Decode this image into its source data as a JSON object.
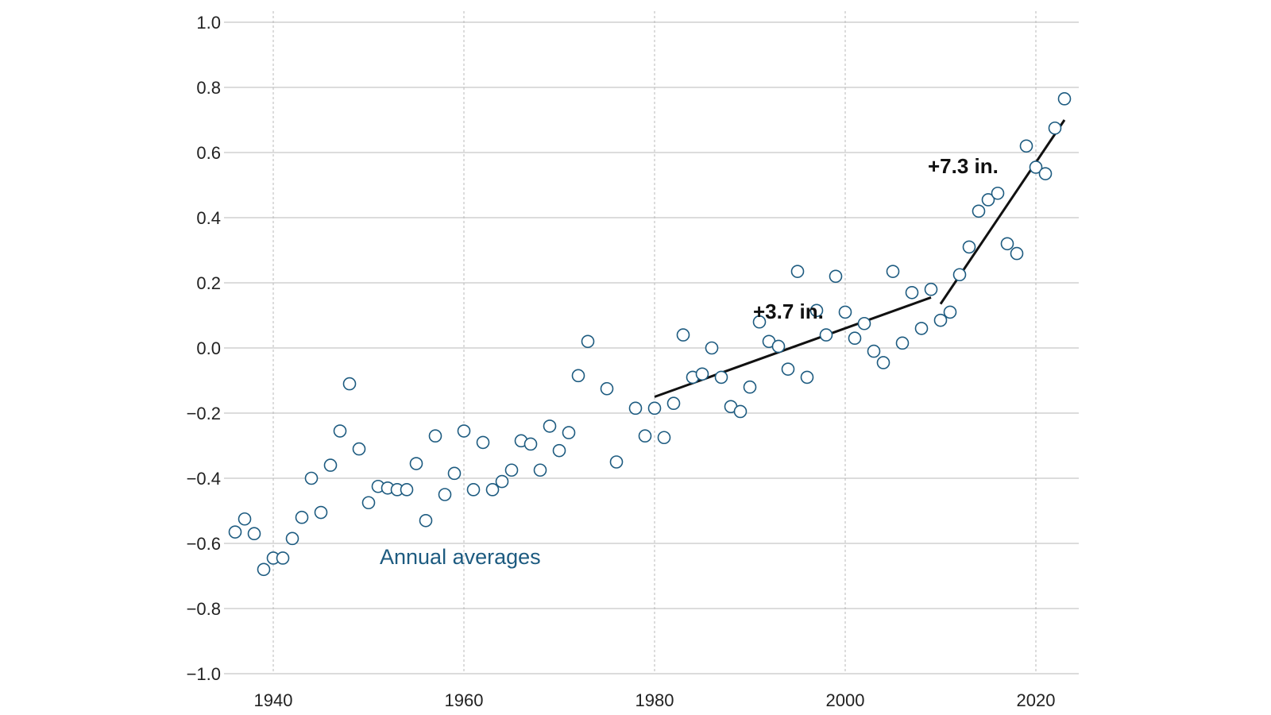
{
  "chart_data": {
    "type": "scatter",
    "title": "",
    "xlabel": "",
    "ylabel": "",
    "xlim": [
      1935,
      2025
    ],
    "ylim": [
      -1.0,
      1.0
    ],
    "x_ticks": [
      1940,
      1960,
      1980,
      2000,
      2020
    ],
    "y_ticks": [
      1.0,
      0.8,
      0.6,
      0.4,
      0.2,
      0.0,
      -0.2,
      -0.4,
      -0.6,
      -0.8,
      -1.0
    ],
    "y_tick_labels": [
      "1.0",
      "0.8",
      "0.6",
      "0.4",
      "0.2",
      "0.0",
      "−0.2",
      "−0.4",
      "−0.6",
      "−0.8",
      "−1.0"
    ],
    "grid": true,
    "point_color": "#1d5b80",
    "series": [
      {
        "name": "Annual averages",
        "points": [
          [
            1936,
            -0.565
          ],
          [
            1937,
            -0.525
          ],
          [
            1938,
            -0.57
          ],
          [
            1939,
            -0.68
          ],
          [
            1940,
            -0.645
          ],
          [
            1941,
            -0.645
          ],
          [
            1942,
            -0.585
          ],
          [
            1943,
            -0.52
          ],
          [
            1944,
            -0.4
          ],
          [
            1945,
            -0.505
          ],
          [
            1946,
            -0.36
          ],
          [
            1947,
            -0.255
          ],
          [
            1948,
            -0.11
          ],
          [
            1949,
            -0.31
          ],
          [
            1950,
            -0.475
          ],
          [
            1951,
            -0.425
          ],
          [
            1952,
            -0.43
          ],
          [
            1953,
            -0.435
          ],
          [
            1954,
            -0.435
          ],
          [
            1955,
            -0.355
          ],
          [
            1956,
            -0.53
          ],
          [
            1957,
            -0.27
          ],
          [
            1958,
            -0.45
          ],
          [
            1959,
            -0.385
          ],
          [
            1960,
            -0.255
          ],
          [
            1961,
            -0.435
          ],
          [
            1962,
            -0.29
          ],
          [
            1963,
            -0.435
          ],
          [
            1964,
            -0.41
          ],
          [
            1965,
            -0.375
          ],
          [
            1966,
            -0.285
          ],
          [
            1967,
            -0.295
          ],
          [
            1968,
            -0.375
          ],
          [
            1969,
            -0.24
          ],
          [
            1970,
            -0.315
          ],
          [
            1971,
            -0.26
          ],
          [
            1972,
            -0.085
          ],
          [
            1973,
            0.02
          ],
          [
            1975,
            -0.125
          ],
          [
            1976,
            -0.35
          ],
          [
            1978,
            -0.185
          ],
          [
            1979,
            -0.27
          ],
          [
            1980,
            -0.185
          ],
          [
            1981,
            -0.275
          ],
          [
            1982,
            -0.17
          ],
          [
            1983,
            0.04
          ],
          [
            1984,
            -0.09
          ],
          [
            1985,
            -0.08
          ],
          [
            1986,
            0.0
          ],
          [
            1987,
            -0.09
          ],
          [
            1988,
            -0.18
          ],
          [
            1989,
            -0.195
          ],
          [
            1990,
            -0.12
          ],
          [
            1991,
            0.08
          ],
          [
            1992,
            0.02
          ],
          [
            1993,
            0.005
          ],
          [
            1994,
            -0.065
          ],
          [
            1995,
            0.235
          ],
          [
            1996,
            -0.09
          ],
          [
            1997,
            0.115
          ],
          [
            1998,
            0.04
          ],
          [
            1999,
            0.22
          ],
          [
            2000,
            0.11
          ],
          [
            2001,
            0.03
          ],
          [
            2002,
            0.075
          ],
          [
            2003,
            -0.01
          ],
          [
            2004,
            -0.045
          ],
          [
            2005,
            0.235
          ],
          [
            2006,
            0.015
          ],
          [
            2007,
            0.17
          ],
          [
            2008,
            0.06
          ],
          [
            2009,
            0.18
          ],
          [
            2010,
            0.085
          ],
          [
            2011,
            0.11
          ],
          [
            2012,
            0.225
          ],
          [
            2013,
            0.31
          ],
          [
            2014,
            0.42
          ],
          [
            2015,
            0.455
          ],
          [
            2016,
            0.475
          ],
          [
            2017,
            0.32
          ],
          [
            2018,
            0.29
          ],
          [
            2019,
            0.62
          ],
          [
            2020,
            0.555
          ],
          [
            2021,
            0.535
          ],
          [
            2022,
            0.675
          ],
          [
            2023,
            0.765
          ]
        ]
      }
    ],
    "trend_lines": [
      {
        "label": "+3.7 in.",
        "start": [
          1980,
          -0.15
        ],
        "end": [
          2009,
          0.155
        ]
      },
      {
        "label": "+7.3 in.",
        "start": [
          2010,
          0.135
        ],
        "end": [
          2023,
          0.7
        ]
      }
    ]
  }
}
